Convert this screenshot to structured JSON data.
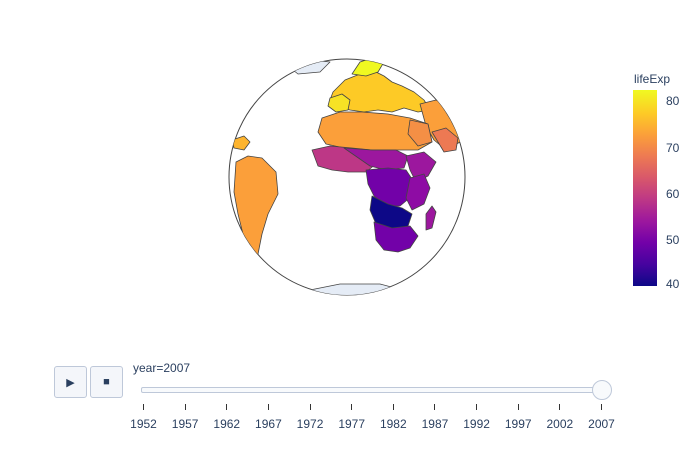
{
  "map": {
    "colorbar_title": "lifeExp",
    "colorbar_ticks": [
      "80",
      "70",
      "60",
      "50",
      "40"
    ],
    "colorscale": [
      "#0d0887",
      "#46039f",
      "#7201a8",
      "#9c179e",
      "#bd3786",
      "#d8576b",
      "#ed7953",
      "#fb9f3a",
      "#fdca26",
      "#f0f921"
    ],
    "range": [
      39.6,
      82.6
    ],
    "projection": "orthographic",
    "land_color": "#e5ecf6"
  },
  "controls": {
    "play_icon": "play-icon",
    "stop_icon": "stop-icon",
    "play_glyph": "▶",
    "stop_glyph": "■"
  },
  "slider": {
    "current_label": "year=2007",
    "current_value": 2007,
    "steps": [
      "1952",
      "1957",
      "1962",
      "1967",
      "1972",
      "1977",
      "1982",
      "1987",
      "1992",
      "1997",
      "2002",
      "2007"
    ]
  }
}
